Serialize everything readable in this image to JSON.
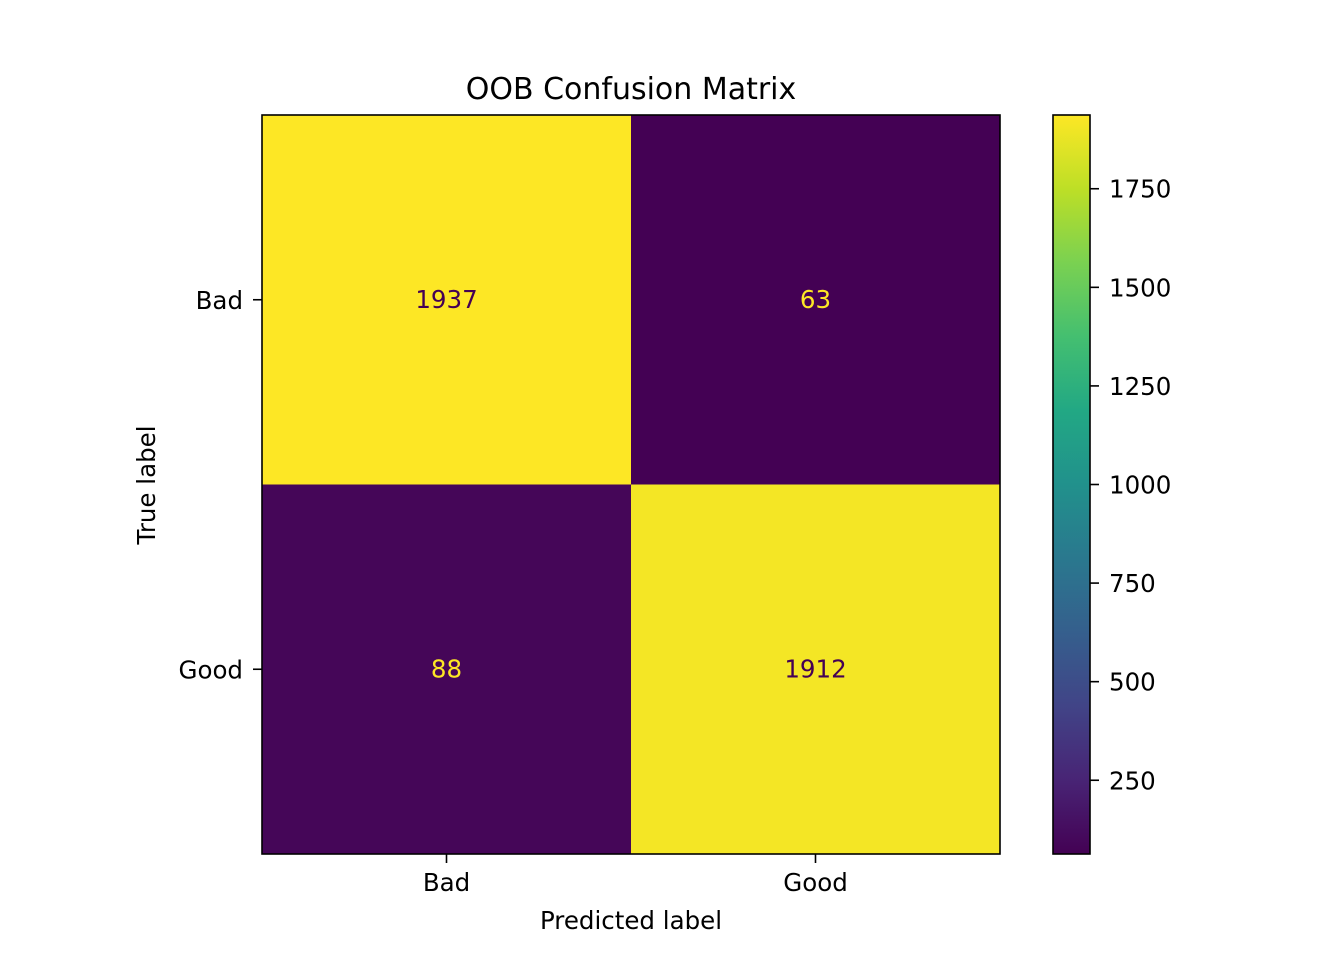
{
  "chart_data": {
    "type": "heatmap",
    "title": "OOB Confusion Matrix",
    "xlabel": "Predicted label",
    "ylabel": "True label",
    "x_categories": [
      "Bad",
      "Good"
    ],
    "y_categories": [
      "Bad",
      "Good"
    ],
    "values": [
      [
        1937,
        63
      ],
      [
        88,
        1912
      ]
    ],
    "colormap": "viridis",
    "colorbar": {
      "range": [
        63,
        1937
      ],
      "ticks": [
        250,
        500,
        750,
        1000,
        1250,
        1500,
        1750
      ],
      "tick_labels": [
        "250",
        "500",
        "750",
        "1000",
        "1250",
        "1500",
        "1750"
      ]
    },
    "grid": false,
    "colors": {
      "high": "#fde725",
      "low": "#440154"
    }
  }
}
